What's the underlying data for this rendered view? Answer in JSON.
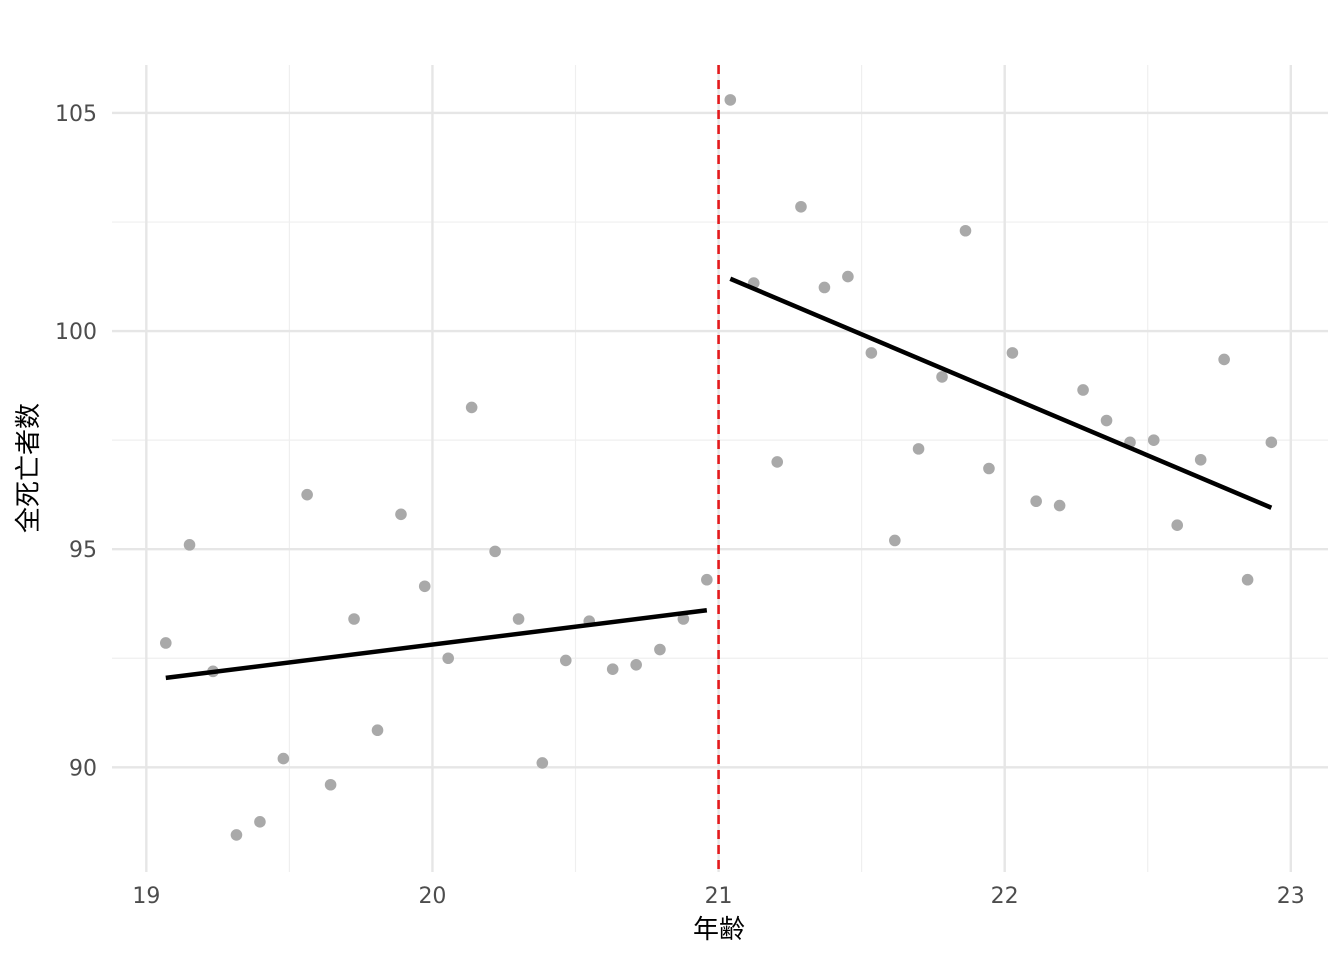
{
  "chart_data": {
    "type": "scatter",
    "xlabel": "年齢",
    "ylabel": "全死亡者数",
    "xlim": [
      18.88,
      23.13
    ],
    "ylim": [
      87.6,
      106.1
    ],
    "x_ticks": [
      19,
      20,
      21,
      22,
      23
    ],
    "x_tick_labels": [
      "19",
      "20",
      "21",
      "22",
      "23"
    ],
    "y_ticks": [
      90,
      95,
      100,
      105
    ],
    "y_tick_labels": [
      "90",
      "95",
      "100",
      "105"
    ],
    "grid": true,
    "cutoff": 21,
    "points": {
      "x": [
        19.068,
        19.151,
        19.233,
        19.315,
        19.397,
        19.479,
        19.562,
        19.644,
        19.726,
        19.808,
        19.89,
        19.973,
        20.055,
        20.137,
        20.219,
        20.301,
        20.384,
        20.466,
        20.548,
        20.63,
        20.712,
        20.795,
        20.877,
        20.959,
        21.041,
        21.123,
        21.205,
        21.288,
        21.37,
        21.452,
        21.534,
        21.616,
        21.699,
        21.781,
        21.863,
        21.945,
        22.027,
        22.11,
        22.192,
        22.274,
        22.356,
        22.438,
        22.521,
        22.603,
        22.685,
        22.767,
        22.849,
        22.932
      ],
      "y": [
        92.85,
        95.1,
        92.2,
        88.45,
        88.75,
        90.2,
        96.25,
        89.6,
        93.4,
        90.85,
        95.8,
        94.15,
        92.5,
        98.25,
        94.95,
        93.4,
        90.1,
        92.45,
        93.35,
        92.25,
        92.35,
        92.7,
        93.4,
        94.3,
        105.3,
        101.1,
        97,
        102.85,
        101,
        101.25,
        99.5,
        95.2,
        97.3,
        98.95,
        102.3,
        96.85,
        99.5,
        96.1,
        96,
        98.65,
        97.95,
        97.45,
        97.5,
        95.55,
        97.05,
        99.35,
        94.3,
        97.45
      ],
      "color": "#a9a9a9"
    },
    "fits": [
      {
        "x": [
          19.068,
          20.959
        ],
        "y": [
          92.05,
          93.6
        ],
        "color": "#000000"
      },
      {
        "x": [
          21.041,
          22.932
        ],
        "y": [
          101.2,
          95.95
        ],
        "color": "#000000"
      }
    ],
    "cutoff_color": "#e31a1c"
  }
}
